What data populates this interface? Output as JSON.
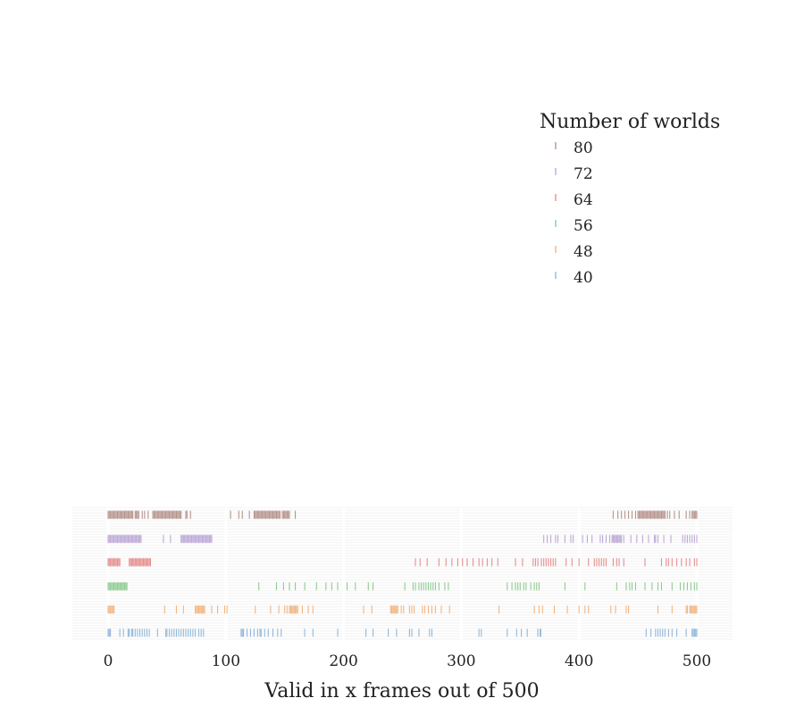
{
  "chart_data": {
    "type": "scatter",
    "title": "",
    "xlabel": "Valid in x frames out of 500",
    "ylabel": "",
    "xlim": [
      0,
      500
    ],
    "x_ticks": [
      0,
      100,
      200,
      300,
      400,
      500
    ],
    "grid": true,
    "legend": {
      "title": "Number of worlds",
      "placement": "top-right",
      "entries": [
        "80",
        "72",
        "64",
        "56",
        "48",
        "40"
      ]
    },
    "series": [
      {
        "name": "80",
        "color": "#a9837a",
        "values": [
          0,
          1,
          2,
          3,
          4,
          5,
          6,
          7,
          8,
          9,
          10,
          11,
          12,
          13,
          14,
          15,
          16,
          17,
          18,
          19,
          20,
          21,
          23,
          24,
          25,
          26,
          29,
          31,
          34,
          38,
          39,
          40,
          41,
          42,
          43,
          44,
          45,
          46,
          47,
          48,
          49,
          50,
          51,
          52,
          53,
          54,
          55,
          56,
          57,
          58,
          59,
          60,
          61,
          62,
          66,
          67,
          70,
          104,
          111,
          114,
          120,
          124,
          125,
          126,
          127,
          128,
          129,
          130,
          131,
          132,
          133,
          134,
          135,
          136,
          137,
          138,
          139,
          140,
          141,
          142,
          143,
          144,
          145,
          146,
          148,
          149,
          150,
          151,
          152,
          153,
          154,
          159,
          429,
          433,
          436,
          439,
          442,
          445,
          448,
          450,
          451,
          452,
          453,
          454,
          455,
          456,
          457,
          458,
          459,
          460,
          461,
          462,
          463,
          464,
          465,
          466,
          467,
          468,
          469,
          470,
          471,
          472,
          473,
          475,
          477,
          481,
          485,
          491,
          494,
          496,
          497,
          498,
          499,
          500
        ]
      },
      {
        "name": "72",
        "color": "#b39ad1",
        "values": [
          0,
          1,
          2,
          3,
          4,
          5,
          6,
          7,
          8,
          9,
          10,
          11,
          12,
          13,
          14,
          15,
          16,
          17,
          18,
          19,
          20,
          21,
          22,
          23,
          24,
          25,
          26,
          27,
          28,
          47,
          53,
          62,
          63,
          64,
          65,
          66,
          67,
          68,
          69,
          70,
          71,
          72,
          73,
          74,
          75,
          76,
          77,
          78,
          79,
          80,
          81,
          82,
          83,
          84,
          85,
          86,
          87,
          88,
          370,
          373,
          376,
          380,
          382,
          388,
          393,
          395,
          403,
          407,
          411,
          418,
          420,
          423,
          426,
          428,
          429,
          430,
          431,
          432,
          433,
          434,
          435,
          436,
          438,
          444,
          449,
          454,
          459,
          464,
          465,
          467,
          472,
          478,
          488,
          490,
          492,
          494,
          496,
          498,
          500
        ]
      },
      {
        "name": "64",
        "color": "#e27c7c",
        "values": [
          0,
          1,
          2,
          3,
          4,
          5,
          6,
          7,
          8,
          9,
          10,
          18,
          19,
          20,
          21,
          22,
          23,
          24,
          25,
          26,
          27,
          28,
          29,
          30,
          31,
          32,
          33,
          34,
          35,
          36,
          261,
          265,
          271,
          281,
          287,
          292,
          297,
          301,
          305,
          310,
          315,
          318,
          322,
          326,
          331,
          346,
          352,
          361,
          363,
          365,
          368,
          370,
          372,
          374,
          376,
          378,
          380,
          389,
          394,
          400,
          408,
          413,
          415,
          417,
          419,
          421,
          423,
          429,
          432,
          434,
          438,
          456,
          470,
          474,
          476,
          479,
          483,
          487,
          491,
          494,
          498,
          500
        ]
      },
      {
        "name": "56",
        "color": "#7bc47f",
        "values": [
          0,
          1,
          2,
          3,
          4,
          5,
          6,
          7,
          8,
          9,
          10,
          11,
          12,
          13,
          14,
          15,
          16,
          128,
          143,
          149,
          154,
          159,
          167,
          177,
          185,
          190,
          195,
          203,
          210,
          221,
          225,
          252,
          259,
          261,
          264,
          266,
          268,
          270,
          272,
          274,
          276,
          278,
          281,
          286,
          289,
          339,
          343,
          346,
          348,
          350,
          353,
          355,
          359,
          362,
          364,
          366,
          388,
          405,
          432,
          440,
          443,
          445,
          448,
          456,
          462,
          467,
          470,
          479,
          486,
          489,
          492,
          495,
          498,
          500
        ]
      },
      {
        "name": "48",
        "color": "#f2a86b",
        "values": [
          0,
          1,
          2,
          3,
          4,
          5,
          48,
          58,
          64,
          74,
          75,
          76,
          77,
          78,
          79,
          80,
          81,
          82,
          88,
          93,
          99,
          101,
          125,
          138,
          145,
          150,
          152,
          154,
          155,
          156,
          157,
          158,
          159,
          160,
          161,
          165,
          170,
          174,
          217,
          224,
          240,
          241,
          242,
          243,
          244,
          245,
          246,
          249,
          251,
          256,
          258,
          260,
          267,
          269,
          272,
          275,
          278,
          283,
          290,
          332,
          362,
          366,
          369,
          379,
          390,
          400,
          405,
          408,
          427,
          431,
          440,
          442,
          467,
          479,
          491,
          492,
          494,
          495,
          496,
          497,
          498,
          499,
          500
        ]
      },
      {
        "name": "40",
        "color": "#80acd3",
        "values": [
          0,
          1,
          2,
          10,
          13,
          17,
          18,
          20,
          21,
          23,
          25,
          27,
          29,
          31,
          33,
          35,
          42,
          49,
          50,
          52,
          54,
          56,
          58,
          60,
          62,
          64,
          66,
          68,
          70,
          72,
          74,
          77,
          79,
          81,
          113,
          114,
          115,
          118,
          121,
          124,
          127,
          129,
          130,
          133,
          136,
          140,
          144,
          147,
          167,
          174,
          195,
          219,
          225,
          238,
          245,
          256,
          258,
          264,
          273,
          275,
          315,
          317,
          339,
          347,
          351,
          356,
          365,
          367,
          367.5,
          457,
          461,
          465,
          467,
          469,
          471,
          473,
          476,
          479,
          483,
          491,
          496,
          497,
          498,
          499,
          500
        ]
      }
    ]
  }
}
